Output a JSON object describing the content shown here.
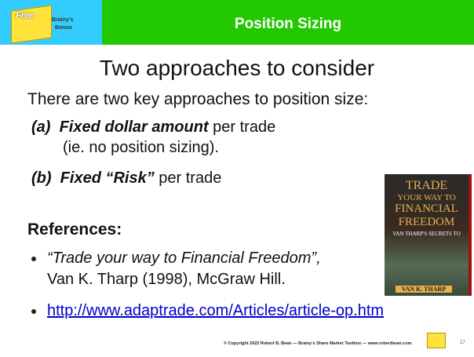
{
  "header": {
    "title": "Position Sizing",
    "logo": {
      "lines": [
        "Free",
        "Brainy's",
        "Bonus"
      ]
    }
  },
  "heading": "Two approaches to consider",
  "intro": "There are two key approaches to position size:",
  "approaches": [
    {
      "label": "(a)",
      "emphasis": "Fixed dollar amount",
      "rest": " per trade",
      "note": "(ie. no position sizing)."
    },
    {
      "label": "(b)",
      "emphasis": "Fixed “Risk”",
      "rest": " per trade"
    }
  ],
  "references": {
    "title": "References:",
    "items": [
      {
        "title": "“Trade your way to Financial Freedom”,",
        "detail": "Van K. Tharp (1998), McGraw Hill."
      },
      {
        "link": "http://www.adaptrade.com/Articles/article-op.htm"
      }
    ]
  },
  "book": {
    "title_lines": [
      "TRADE",
      "YOUR WAY TO",
      "FINANCIAL",
      "FREEDOM"
    ],
    "subtitle": "VAN THARP'S SECRETS TO",
    "author": "VAN K. THARP"
  },
  "footer": {
    "copyright": "© Copyright 2022 Robert B. Bean — Brainy's Share Market Toolbox — www.robertbean.com",
    "page": "17"
  }
}
